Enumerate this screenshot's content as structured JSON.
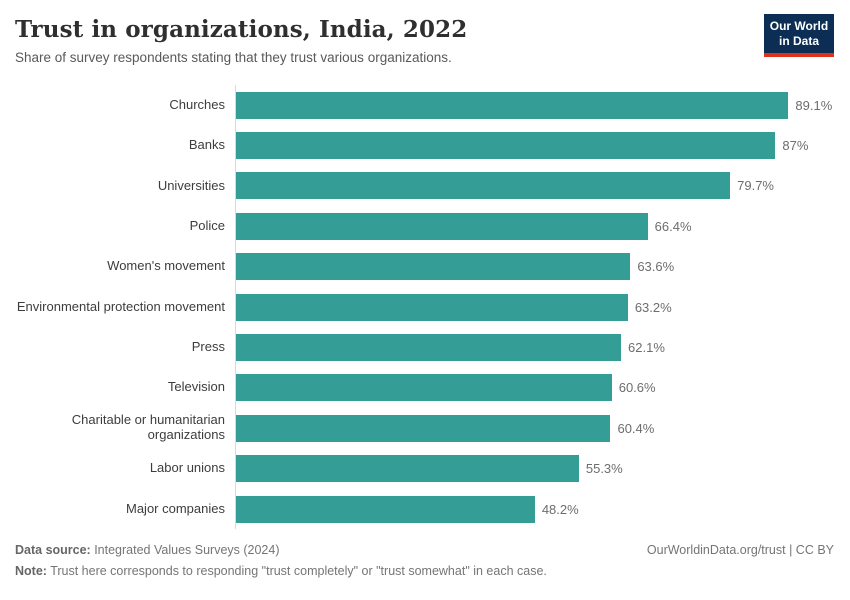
{
  "header": {
    "title": "Trust in organizations, India, 2022",
    "subtitle": "Share of survey respondents stating that they trust various organizations.",
    "logo": {
      "line1": "Our World",
      "line2": "in Data",
      "bg_color": "#0c2d54",
      "accent_color": "#e0301e"
    }
  },
  "chart_data": {
    "type": "bar",
    "orientation": "horizontal",
    "title": "Trust in organizations, India, 2022",
    "subtitle": "Share of survey respondents stating that they trust various organizations.",
    "categories": [
      "Churches",
      "Banks",
      "Universities",
      "Police",
      "Women's movement",
      "Environmental protection movement",
      "Press",
      "Television",
      "Charitable or humanitarian organizations",
      "Labor unions",
      "Major companies"
    ],
    "values": [
      89.1,
      87,
      79.7,
      66.4,
      63.6,
      63.2,
      62.1,
      60.6,
      60.4,
      55.3,
      48.2
    ],
    "value_labels": [
      "89.1%",
      "87%",
      "79.7%",
      "66.4%",
      "63.6%",
      "63.2%",
      "62.1%",
      "60.6%",
      "60.4%",
      "55.3%",
      "48.2%"
    ],
    "unit": "%",
    "xlim": [
      0,
      100
    ],
    "grid": false,
    "legend": false,
    "bar_color": "#349d96",
    "axis_line_color": "#d9d9d9"
  },
  "footer": {
    "source_label": "Data source:",
    "source_text": " Integrated Values Surveys (2024)",
    "attribution": "OurWorldinData.org/trust | CC BY",
    "note_label": "Note:",
    "note_text": " Trust here corresponds to responding \"trust completely\" or \"trust somewhat\" in each case."
  }
}
